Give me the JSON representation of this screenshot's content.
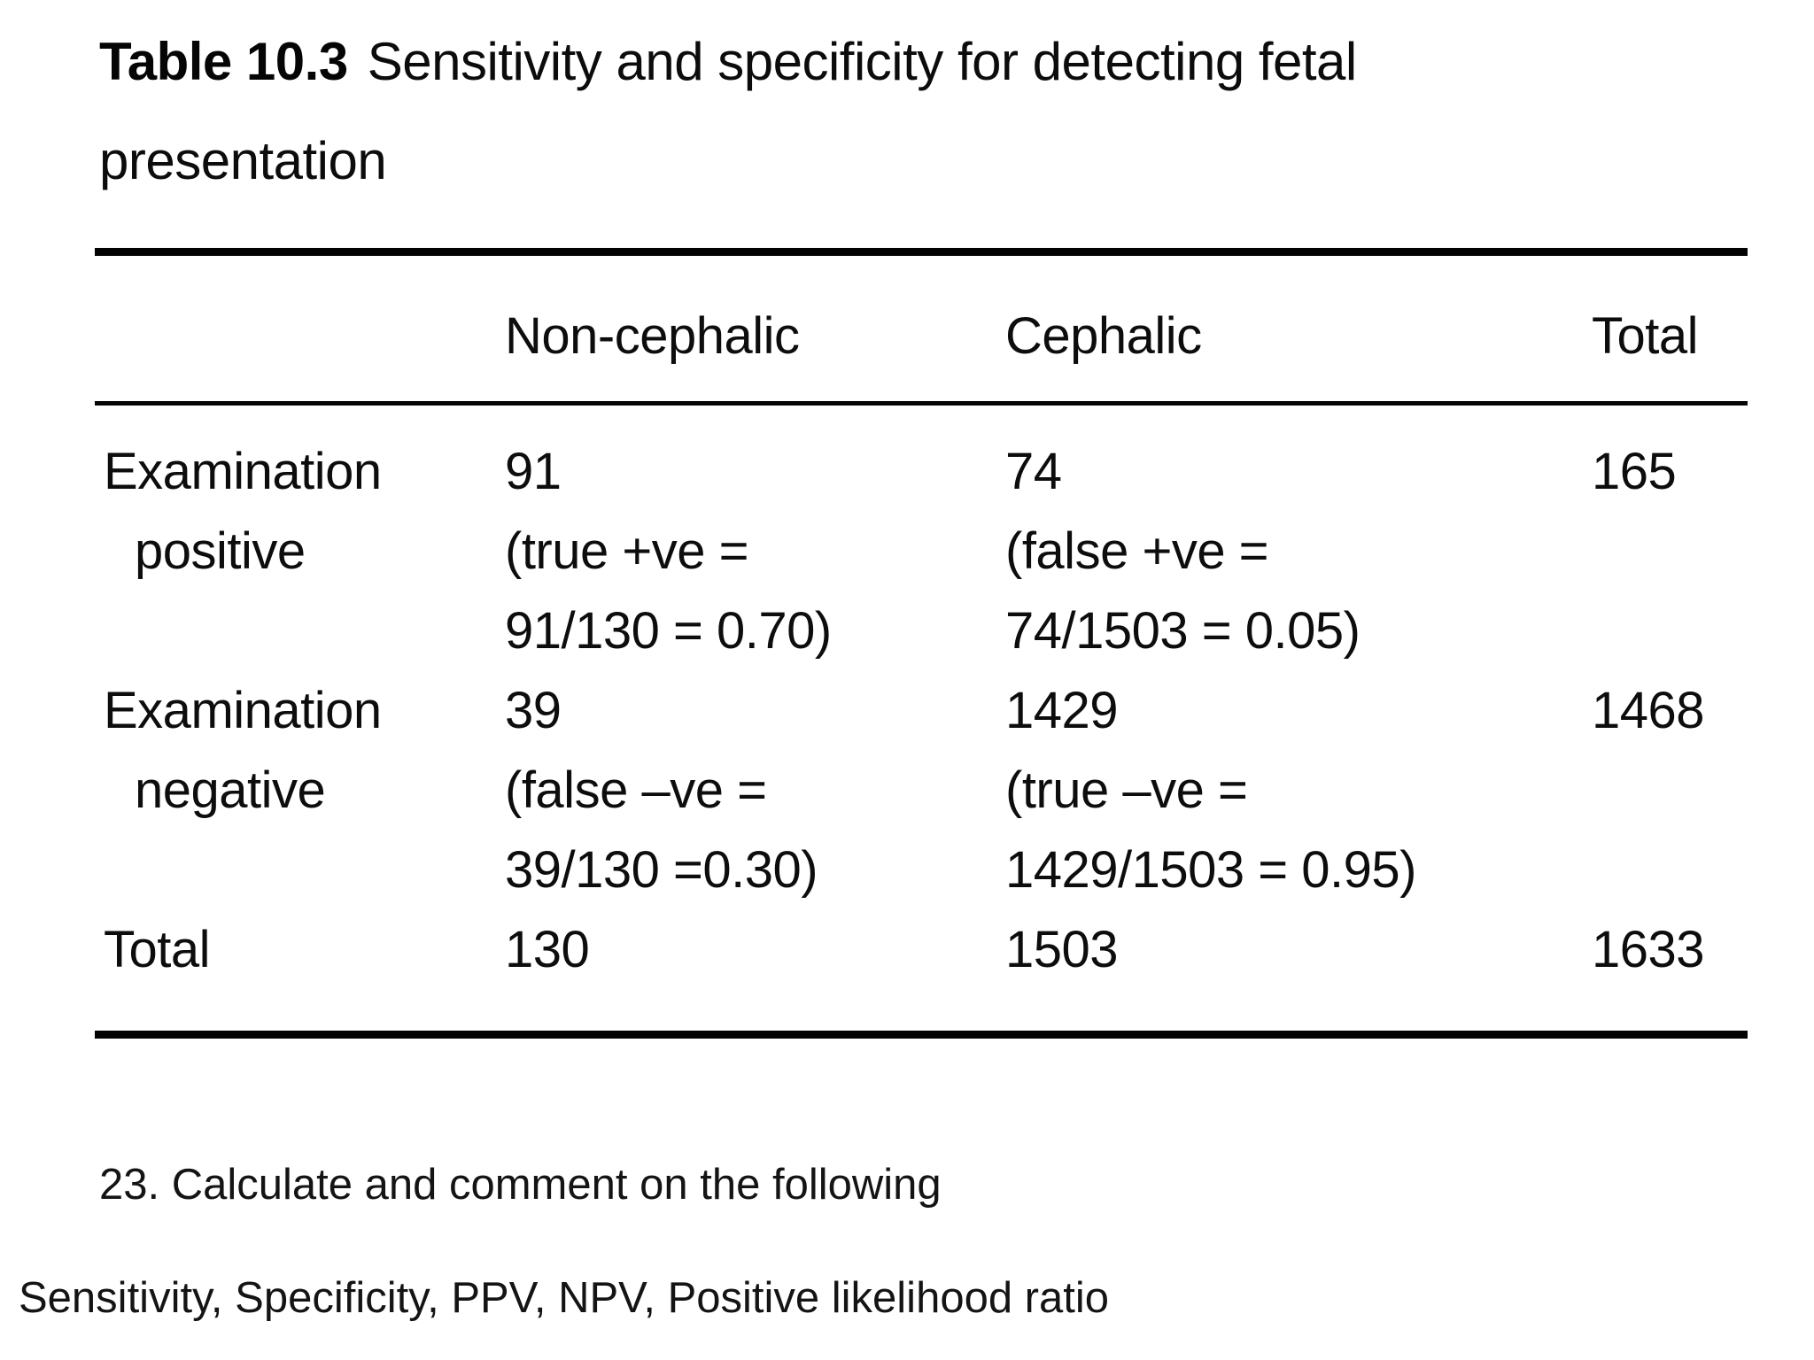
{
  "caption": {
    "label": "Table 10.3",
    "text": "Sensitivity and specificity for detecting fetal presentation"
  },
  "table": {
    "header": {
      "col0": "",
      "col1": "Non-cephalic",
      "col2": "Cephalic",
      "col3": "Total"
    },
    "rows": [
      {
        "label": [
          "Examination",
          "positive"
        ],
        "non_cephalic": [
          "91",
          "(true +ve =",
          "91/130 = 0.70)"
        ],
        "cephalic": [
          "74",
          "(false +ve =",
          "74/1503 = 0.05)"
        ],
        "total": "165"
      },
      {
        "label": [
          "Examination",
          "negative"
        ],
        "non_cephalic": [
          "39",
          "(false –ve =",
          "39/130 =0.30)"
        ],
        "cephalic": [
          "1429",
          "(true –ve =",
          "1429/1503 = 0.95)"
        ],
        "total": "1468"
      },
      {
        "label": "Total",
        "non_cephalic": "130",
        "cephalic": "1503",
        "total": "1633"
      }
    ]
  },
  "footer": {
    "question": "23. Calculate and comment on the following",
    "metrics": "Sensitivity, Specificity, PPV, NPV, Positive likelihood ratio"
  },
  "colors": {
    "background": "#ffffff",
    "text": "#0d0d0d",
    "rule": "#030303"
  }
}
